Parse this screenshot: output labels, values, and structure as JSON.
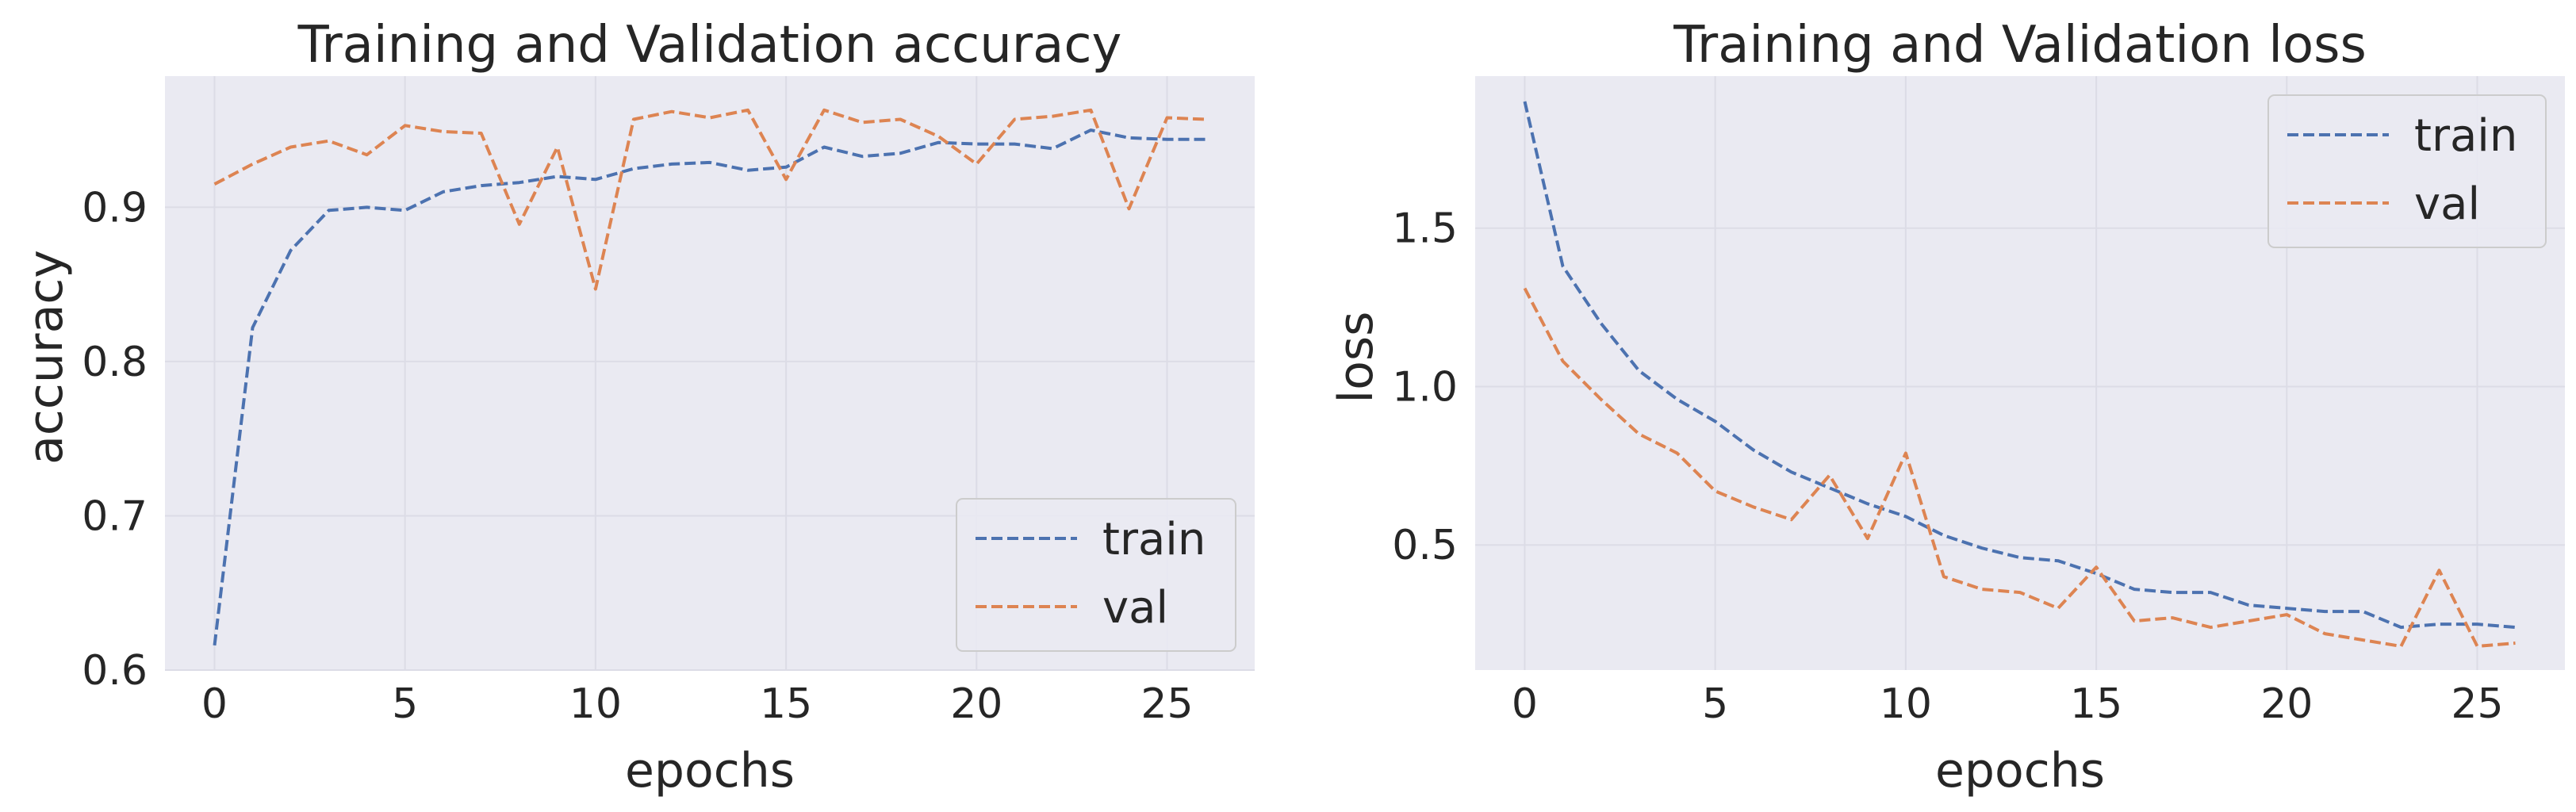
{
  "colors": {
    "train": "#4c72b0",
    "val": "#dd8452",
    "plot_bg": "#eaeaf2",
    "grid": "#dcdce6",
    "legend_bg": "#eaeaf2",
    "legend_border": "#cccccc"
  },
  "chart_data": [
    {
      "type": "line",
      "title": "Training and Validation accuracy",
      "xlabel": "epochs",
      "ylabel": "accuracy",
      "xlim": [
        -1.3,
        27.3
      ],
      "ylim": [
        0.6,
        0.985
      ],
      "xticks": [
        0,
        5,
        10,
        15,
        20,
        25
      ],
      "yticks": [
        0.6,
        0.7,
        0.8,
        0.9
      ],
      "ytick_labels": [
        "0.6",
        "0.7",
        "0.8",
        "0.9"
      ],
      "grid": true,
      "legend_position": "lower-right",
      "x": [
        0,
        1,
        2,
        3,
        4,
        5,
        6,
        7,
        8,
        9,
        10,
        11,
        12,
        13,
        14,
        15,
        16,
        17,
        18,
        19,
        20,
        21,
        22,
        23,
        24,
        25,
        26
      ],
      "series": [
        {
          "name": "train",
          "line_style": "dashed",
          "values": [
            0.616,
            0.822,
            0.872,
            0.898,
            0.9,
            0.898,
            0.91,
            0.914,
            0.916,
            0.92,
            0.918,
            0.925,
            0.928,
            0.929,
            0.924,
            0.926,
            0.939,
            0.933,
            0.935,
            0.942,
            0.941,
            0.941,
            0.938,
            0.95,
            0.945,
            0.944,
            0.944
          ]
        },
        {
          "name": "val",
          "line_style": "dashed",
          "values": [
            0.915,
            0.928,
            0.939,
            0.943,
            0.934,
            0.953,
            0.949,
            0.948,
            0.889,
            0.939,
            0.847,
            0.957,
            0.962,
            0.958,
            0.963,
            0.918,
            0.963,
            0.955,
            0.957,
            0.946,
            0.928,
            0.957,
            0.959,
            0.963,
            0.899,
            0.958,
            0.957
          ]
        }
      ]
    },
    {
      "type": "line",
      "title": "Training and Validation loss",
      "xlabel": "epochs",
      "ylabel": "loss",
      "xlim": [
        -1.3,
        27.3
      ],
      "ylim": [
        0.105,
        1.98
      ],
      "xticks": [
        0,
        5,
        10,
        15,
        20,
        25
      ],
      "yticks": [
        0.5,
        1.0,
        1.5
      ],
      "ytick_labels": [
        "0.5",
        "1.0",
        "1.5"
      ],
      "grid": true,
      "legend_position": "upper-right",
      "x": [
        0,
        1,
        2,
        3,
        4,
        5,
        6,
        7,
        8,
        9,
        10,
        11,
        12,
        13,
        14,
        15,
        16,
        17,
        18,
        19,
        20,
        21,
        22,
        23,
        24,
        25,
        26
      ],
      "series": [
        {
          "name": "train",
          "line_style": "dashed",
          "values": [
            1.9,
            1.38,
            1.2,
            1.05,
            0.96,
            0.89,
            0.8,
            0.73,
            0.68,
            0.63,
            0.59,
            0.53,
            0.49,
            0.46,
            0.45,
            0.41,
            0.36,
            0.35,
            0.35,
            0.31,
            0.3,
            0.29,
            0.29,
            0.24,
            0.25,
            0.25,
            0.24
          ]
        },
        {
          "name": "val",
          "line_style": "dashed",
          "values": [
            1.31,
            1.08,
            0.96,
            0.85,
            0.79,
            0.67,
            0.62,
            0.58,
            0.72,
            0.52,
            0.79,
            0.4,
            0.36,
            0.35,
            0.3,
            0.43,
            0.26,
            0.27,
            0.24,
            0.26,
            0.28,
            0.22,
            0.2,
            0.18,
            0.42,
            0.18,
            0.19
          ]
        }
      ]
    }
  ]
}
